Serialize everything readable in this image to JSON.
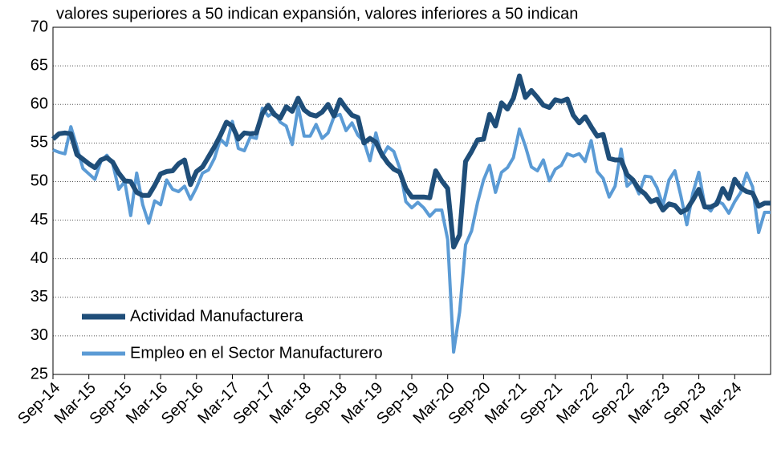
{
  "chart_data": {
    "type": "line",
    "title": "valores superiores a 50 indican expansión, valores inferiores a 50 indican",
    "categories": [
      "Sep-14",
      null,
      null,
      null,
      null,
      null,
      "Mar-15",
      null,
      null,
      null,
      null,
      null,
      "Sep-15",
      null,
      null,
      null,
      null,
      null,
      "Mar-16",
      null,
      null,
      null,
      null,
      null,
      "Sep-16",
      null,
      null,
      null,
      null,
      null,
      "Mar-17",
      null,
      null,
      null,
      null,
      null,
      "Sep-17",
      null,
      null,
      null,
      null,
      null,
      "Mar-18",
      null,
      null,
      null,
      null,
      null,
      "Sep-18",
      null,
      null,
      null,
      null,
      null,
      "Mar-19",
      null,
      null,
      null,
      null,
      null,
      "Sep-19",
      null,
      null,
      null,
      null,
      null,
      "Mar-20",
      null,
      null,
      null,
      null,
      null,
      "Sep-20",
      null,
      null,
      null,
      null,
      null,
      "Mar-21",
      null,
      null,
      null,
      null,
      null,
      "Sep-21",
      null,
      null,
      null,
      null,
      null,
      "Mar-22",
      null,
      null,
      null,
      null,
      null,
      "Sep-22",
      null,
      null,
      null,
      null,
      null,
      "Mar-23",
      null,
      null,
      null,
      null,
      null,
      "Sep-23",
      null,
      null,
      null,
      null,
      null,
      "Mar-24",
      null,
      null,
      null,
      null,
      null,
      null
    ],
    "series": [
      {
        "name": "Actividad Manufacturera",
        "color": "#1f4e79",
        "width": 6,
        "values": [
          55.5,
          56.2,
          56.3,
          56.2,
          53.5,
          52.9,
          52.3,
          51.8,
          52.8,
          53.1,
          52.5,
          51.1,
          50.1,
          50.0,
          48.6,
          48.2,
          48.2,
          49.5,
          51.0,
          51.3,
          51.4,
          52.3,
          52.8,
          49.6,
          51.3,
          51.9,
          53.2,
          54.5,
          56.0,
          57.7,
          57.2,
          55.5,
          56.3,
          56.2,
          56.3,
          58.8,
          59.9,
          58.7,
          58.2,
          59.7,
          59.1,
          60.8,
          59.3,
          58.7,
          58.5,
          59.0,
          60.0,
          58.5,
          60.6,
          59.5,
          58.6,
          58.3,
          55.0,
          55.6,
          55.1,
          53.5,
          52.4,
          51.6,
          51.2,
          49.1,
          48.0,
          48.0,
          48.0,
          47.9,
          51.4,
          50.1,
          49.1,
          41.5,
          43.1,
          52.6,
          53.9,
          55.4,
          55.5,
          58.7,
          57.2,
          60.2,
          59.4,
          60.8,
          63.7,
          60.9,
          61.8,
          60.9,
          59.9,
          59.6,
          60.6,
          60.4,
          60.7,
          58.6,
          57.6,
          58.4,
          57.1,
          55.9,
          56.1,
          53.0,
          52.8,
          52.8,
          50.9,
          50.2,
          49.0,
          48.4,
          47.4,
          47.7,
          46.3,
          47.1,
          46.9,
          46.0,
          46.4,
          47.6,
          49.0,
          46.7,
          46.7,
          47.1,
          49.1,
          47.8,
          50.3,
          49.2,
          48.7,
          48.5,
          46.8,
          47.2,
          47.2
        ]
      },
      {
        "name": "Empleo en el Sector Manufacturero",
        "color": "#5b9bd5",
        "width": 4,
        "values": [
          54.1,
          53.8,
          53.6,
          57.1,
          54.5,
          51.7,
          51.0,
          50.3,
          52.6,
          53.4,
          52.3,
          49.0,
          50.0,
          45.6,
          51.1,
          47.0,
          44.6,
          47.5,
          47.0,
          50.2,
          49.0,
          48.7,
          49.4,
          47.7,
          49.2,
          51.1,
          51.5,
          53.0,
          55.5,
          54.7,
          57.8,
          54.3,
          54.0,
          55.8,
          55.6,
          59.5,
          58.5,
          59.0,
          57.7,
          57.2,
          54.8,
          59.7,
          55.9,
          55.9,
          57.4,
          55.6,
          56.3,
          58.4,
          58.7,
          56.6,
          57.6,
          56.0,
          55.2,
          52.7,
          56.3,
          53.2,
          54.5,
          53.9,
          51.7,
          47.4,
          46.6,
          47.3,
          46.6,
          45.5,
          46.3,
          46.3,
          42.5,
          27.9,
          33.1,
          41.8,
          43.6,
          47.3,
          50.2,
          52.1,
          48.6,
          51.2,
          51.8,
          53.1,
          56.8,
          54.6,
          51.9,
          51.4,
          52.8,
          50.1,
          51.6,
          52.1,
          53.6,
          53.3,
          53.6,
          52.6,
          55.3,
          51.3,
          50.4,
          48.0,
          49.4,
          54.2,
          49.4,
          50.1,
          48.4,
          50.7,
          50.6,
          49.2,
          46.9,
          50.2,
          51.4,
          48.1,
          44.4,
          48.5,
          51.2,
          46.9,
          46.2,
          47.5,
          47.1,
          45.9,
          47.4,
          48.6,
          51.1,
          49.3,
          43.4,
          46.0,
          46.0
        ]
      }
    ],
    "ylim": [
      25,
      70
    ],
    "yticks": [
      25,
      30,
      35,
      40,
      45,
      50,
      55,
      60,
      65,
      70
    ],
    "grid": true,
    "legend": "lower-left"
  }
}
